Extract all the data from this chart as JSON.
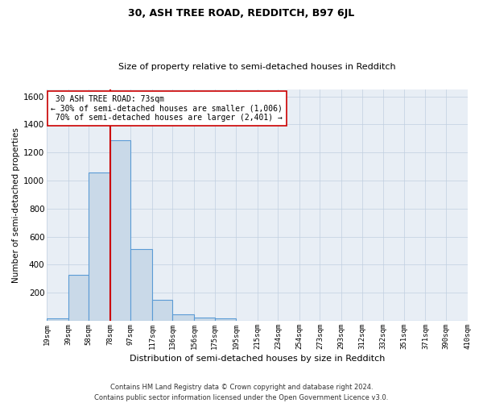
{
  "title": "30, ASH TREE ROAD, REDDITCH, B97 6JL",
  "subtitle": "Size of property relative to semi-detached houses in Redditch",
  "xlabel": "Distribution of semi-detached houses by size in Redditch",
  "ylabel": "Number of semi-detached properties",
  "footer_line1": "Contains HM Land Registry data © Crown copyright and database right 2024.",
  "footer_line2": "Contains public sector information licensed under the Open Government Licence v3.0.",
  "property_label": "30 ASH TREE ROAD: 73sqm",
  "pct_smaller": 30,
  "pct_larger": 70,
  "n_smaller": 1006,
  "n_larger": 2401,
  "bin_labels": [
    "19sqm",
    "39sqm",
    "58sqm",
    "78sqm",
    "97sqm",
    "117sqm",
    "136sqm",
    "156sqm",
    "175sqm",
    "195sqm",
    "215sqm",
    "234sqm",
    "254sqm",
    "273sqm",
    "293sqm",
    "312sqm",
    "332sqm",
    "351sqm",
    "371sqm",
    "390sqm",
    "410sqm"
  ],
  "bin_edges": [
    19,
    39,
    58,
    78,
    97,
    117,
    136,
    156,
    175,
    195,
    215,
    234,
    254,
    273,
    293,
    312,
    332,
    351,
    371,
    390,
    410
  ],
  "bar_values": [
    20,
    330,
    1060,
    1290,
    510,
    148,
    45,
    25,
    15,
    0,
    0,
    0,
    0,
    0,
    0,
    0,
    0,
    0,
    0,
    0
  ],
  "bar_color": "#c9d9e8",
  "bar_edge_color": "#5b9bd5",
  "vline_x": 78,
  "vline_color": "#cc0000",
  "ylim_max": 1650,
  "yticks": [
    0,
    200,
    400,
    600,
    800,
    1000,
    1200,
    1400,
    1600
  ],
  "annotation_box_color": "#ffffff",
  "annotation_box_edge": "#cc0000",
  "bg_color": "#e8eef5",
  "grid_color": "#c0cfe0",
  "title_fontsize": 9,
  "subtitle_fontsize": 8
}
